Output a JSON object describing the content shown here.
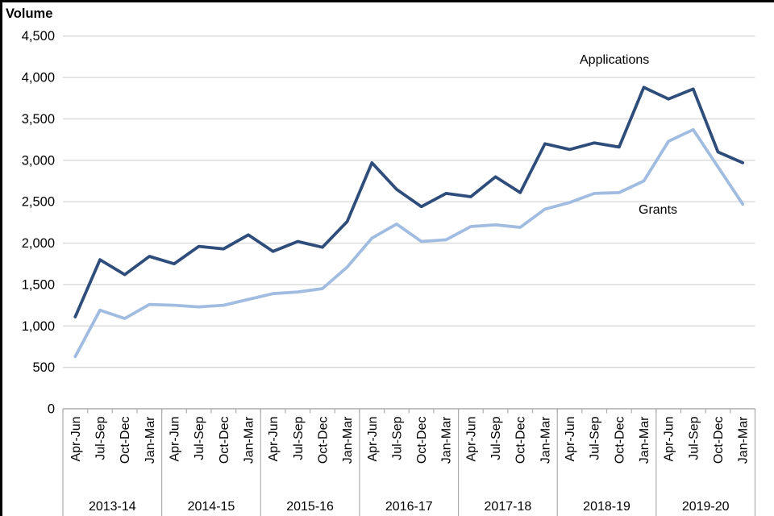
{
  "chart_data": {
    "type": "line",
    "ylabel": "Volume",
    "xlabel": "",
    "grid": true,
    "ylim": [
      0,
      4500
    ],
    "ytick_step": 500,
    "y_tick_labels_top_to_bottom": [
      "4,500",
      "4,000",
      "3,500",
      "3,000",
      "2,500",
      "2,000",
      "1,500",
      "1,000",
      "500",
      "0"
    ],
    "quarter_labels": [
      "Apr-Jun",
      "Jul-Sep",
      "Oct-Dec",
      "Jan-Mar"
    ],
    "years": [
      "2013-14",
      "2014-15",
      "2015-16",
      "2016-17",
      "2017-18",
      "2018-19",
      "2019-20"
    ],
    "x_labels": [
      "Apr-Jun",
      "Jul-Sep",
      "Oct-Dec",
      "Jan-Mar",
      "Apr-Jun",
      "Jul-Sep",
      "Oct-Dec",
      "Jan-Mar",
      "Apr-Jun",
      "Jul-Sep",
      "Oct-Dec",
      "Jan-Mar",
      "Apr-Jun",
      "Jul-Sep",
      "Oct-Dec",
      "Jan-Mar",
      "Apr-Jun",
      "Jul-Sep",
      "Oct-Dec",
      "Jan-Mar",
      "Apr-Jun",
      "Jul-Sep",
      "Oct-Dec",
      "Jan-Mar",
      "Apr-Jun",
      "Jul-Sep",
      "Oct-Dec",
      "Jan-Mar"
    ],
    "legend_position": "inline-annotations",
    "series": [
      {
        "name": "Applications",
        "color": "#2E4D7B",
        "values": [
          1110,
          1800,
          1620,
          1840,
          1750,
          1960,
          1930,
          2100,
          1900,
          2020,
          1950,
          2260,
          2970,
          2650,
          2440,
          2600,
          2560,
          2800,
          2610,
          3200,
          3130,
          3210,
          3160,
          3880,
          3740,
          3860,
          3100,
          2970
        ]
      },
      {
        "name": "Grants",
        "color": "#A0BCE0",
        "values": [
          630,
          1190,
          1090,
          1260,
          1250,
          1230,
          1250,
          1320,
          1390,
          1410,
          1450,
          1710,
          2060,
          2230,
          2020,
          2040,
          2200,
          2220,
          2190,
          2410,
          2490,
          2600,
          2610,
          2750,
          3230,
          3370,
          2920,
          2470
        ]
      }
    ]
  }
}
